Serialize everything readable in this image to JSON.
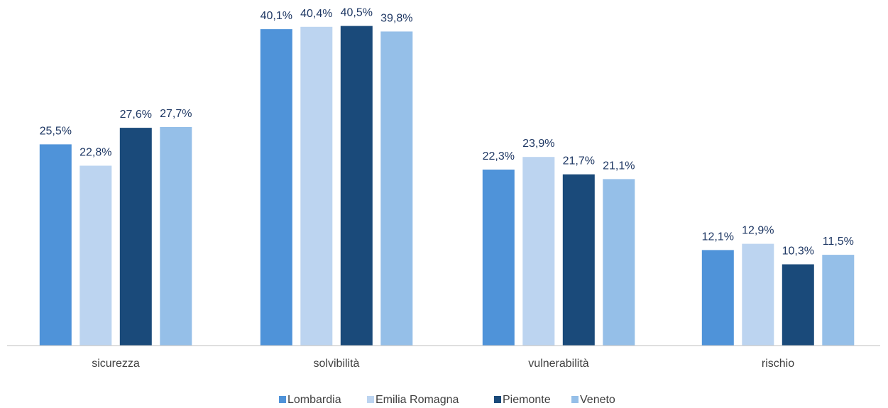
{
  "chart_data": {
    "type": "bar",
    "title": "",
    "xlabel": "",
    "ylabel": "",
    "ylim": [
      0,
      45
    ],
    "grid": false,
    "legend_position": "bottom",
    "categories": [
      "sicurezza",
      "solvibilità",
      "vulnerabilità",
      "rischio"
    ],
    "series": [
      {
        "name": "Lombardia",
        "color": "#4f93d9",
        "values": [
          25.5,
          40.1,
          22.3,
          12.1
        ],
        "labels": [
          "25,5%",
          "40,1%",
          "22,3%",
          "12,1%"
        ]
      },
      {
        "name": "Emilia Romagna",
        "color": "#bcd4f0",
        "values": [
          22.8,
          40.4,
          23.9,
          12.9
        ],
        "labels": [
          "22,8%",
          "40,4%",
          "23,9%",
          "12,9%"
        ]
      },
      {
        "name": "Piemonte",
        "color": "#1a4a7a",
        "values": [
          27.6,
          40.5,
          21.7,
          10.3
        ],
        "labels": [
          "27,6%",
          "40,5%",
          "21,7%",
          "10,3%"
        ]
      },
      {
        "name": "Veneto",
        "color": "#95bfe8",
        "values": [
          27.7,
          39.8,
          21.1,
          11.5
        ],
        "labels": [
          "27,7%",
          "39,8%",
          "21,1%",
          "11,5%"
        ]
      }
    ]
  }
}
